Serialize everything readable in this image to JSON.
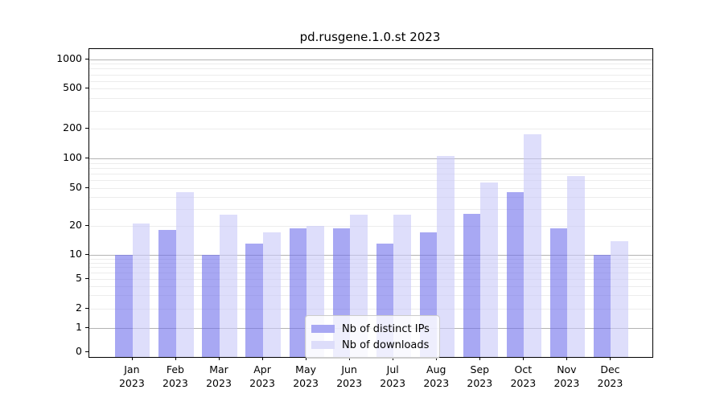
{
  "chart_data": {
    "type": "bar",
    "title": "pd.rusgene.1.0.st 2023",
    "categories": [
      "Jan 2023",
      "Feb 2023",
      "Mar 2023",
      "Apr 2023",
      "May 2023",
      "Jun 2023",
      "Jul 2023",
      "Aug 2023",
      "Sep 2023",
      "Oct 2023",
      "Nov 2023",
      "Dec 2023"
    ],
    "series": [
      {
        "name": "Nb of distinct IPs",
        "values": [
          10,
          18,
          10,
          13,
          19,
          19,
          13,
          17,
          27,
          45,
          19,
          10
        ],
        "fill": "rgba(110,110,235,0.6)",
        "swatch": "#a8a8f3"
      },
      {
        "name": "Nb of downloads",
        "values": [
          21,
          45,
          26,
          17,
          20,
          26,
          26,
          105,
          57,
          175,
          66,
          14
        ],
        "fill": "rgba(200,200,248,0.6)",
        "swatch": "#ddddfa"
      }
    ],
    "yscale": "symlog",
    "yticks": [
      0,
      1,
      2,
      5,
      10,
      20,
      50,
      100,
      200,
      500,
      1000
    ],
    "ylim": [
      0,
      1200
    ],
    "grid": "major-and-minor, horizontal only",
    "legend_position": "lower center"
  },
  "colors": {
    "distinct_ips_bar": "#a8a8f3",
    "downloads_bar": "#ddddfa",
    "major_gridline": "#b3b3b3",
    "minor_gridline": "#ececec",
    "axis": "#000000",
    "legend_border": "#cccccc"
  }
}
